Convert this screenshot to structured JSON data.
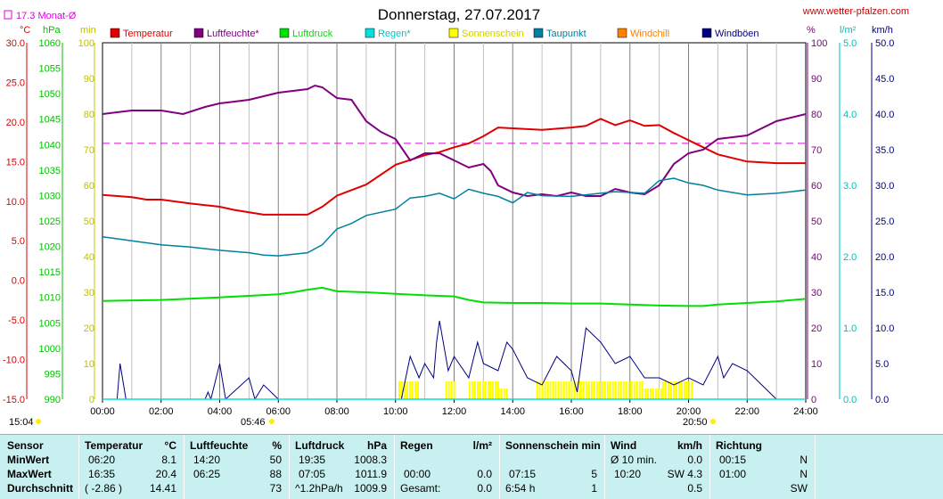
{
  "title": "Donnerstag, 27.07.2017",
  "site": "www.wetter-pfalzen.com",
  "month_avg": "17.3 Monat-Ø",
  "colors": {
    "temperature": "#e00000",
    "humidity": "#800080",
    "pressure": "#00e000",
    "rain": "#00e0e0",
    "sunshine": "#ffff00",
    "dewpoint": "#0080a0",
    "windchill": "#ff8000",
    "gusts": "#000080",
    "month_avg": "#e000e0"
  },
  "legend": [
    "Temperatur",
    "Luftfeuchte*",
    "Luftdruck",
    "Regen*",
    "Sonnenschein",
    "Taupunkt",
    "Windchill",
    "Windböen"
  ],
  "axes": {
    "temp_unit": "°C",
    "hpa_unit": "hPa",
    "min_unit": "min",
    "pct_unit": "%",
    "rain_unit": "l/m²",
    "wind_unit": "km/h",
    "temp_ticks": [
      "30.0",
      "25.0",
      "20.0",
      "15.0",
      "10.0",
      "5.0",
      "0.0",
      "-5.0",
      "-10.0",
      "-15.0"
    ],
    "hpa_ticks": [
      "1060",
      "1055",
      "1050",
      "1045",
      "1040",
      "1035",
      "1030",
      "1025",
      "1020",
      "1015",
      "1010",
      "1005",
      "1000",
      "995",
      "990"
    ],
    "min_ticks": [
      "100",
      "90",
      "80",
      "70",
      "60",
      "50",
      "40",
      "30",
      "20",
      "10",
      "0"
    ],
    "pct_ticks": [
      "100",
      "90",
      "80",
      "70",
      "60",
      "50",
      "40",
      "30",
      "20",
      "10",
      "0"
    ],
    "rain_ticks": [
      "5.0",
      "4.0",
      "3.0",
      "2.0",
      "1.0",
      "0.0"
    ],
    "wind_ticks": [
      "50.0",
      "45.0",
      "40.0",
      "35.0",
      "30.0",
      "25.0",
      "20.0",
      "15.0",
      "10.0",
      "5.0",
      "0.0"
    ],
    "x_ticks": [
      "00:00",
      "02:00",
      "04:00",
      "06:00",
      "08:00",
      "10:00",
      "12:00",
      "14:00",
      "16:00",
      "18:00",
      "20:00",
      "22:00",
      "24:00"
    ],
    "sunrise": "05:46",
    "sunset": "20:50",
    "moonrise": "15:04"
  },
  "chart_data": {
    "type": "line",
    "x_unit": "hours",
    "month_avg_temp": 17.3,
    "series": [
      {
        "name": "Temperatur",
        "axis": "°C",
        "x": [
          0,
          1,
          1.5,
          2,
          3,
          4,
          4.5,
          5,
          5.5,
          6,
          6.5,
          7,
          7.5,
          8,
          9,
          10,
          10.5,
          11,
          11.5,
          12,
          12.5,
          13,
          13.5,
          14,
          15,
          16,
          16.5,
          17,
          17.5,
          18,
          18.5,
          19,
          19.5,
          20,
          20.5,
          21,
          22,
          23,
          24
        ],
        "values": [
          10.8,
          10.5,
          10.2,
          10.2,
          9.7,
          9.3,
          8.9,
          8.6,
          8.3,
          8.3,
          8.3,
          8.3,
          9.3,
          10.7,
          12.1,
          14.6,
          15.2,
          15.8,
          16.2,
          16.8,
          17.3,
          18.2,
          19.3,
          19.2,
          19.0,
          19.3,
          19.5,
          20.4,
          19.6,
          20.2,
          19.5,
          19.6,
          18.6,
          17.7,
          16.8,
          15.9,
          15.0,
          14.8,
          14.8
        ]
      },
      {
        "name": "Luftfeuchte*",
        "axis": "%",
        "x": [
          0,
          1,
          2,
          2.75,
          3.5,
          4,
          5,
          5.5,
          6,
          6.5,
          7,
          7.25,
          7.5,
          8,
          8.5,
          9,
          9.5,
          10,
          10.25,
          10.5,
          11,
          11.5,
          12,
          12.5,
          13,
          13.25,
          13.5,
          14,
          14.5,
          15,
          15.5,
          16,
          16.5,
          17,
          17.5,
          18,
          18.5,
          19,
          19.5,
          20,
          20.5,
          21,
          22,
          23,
          24
        ],
        "values": [
          80,
          81,
          81,
          80,
          82,
          83,
          84,
          85,
          86,
          86.5,
          87,
          88,
          87.5,
          84.5,
          84,
          78,
          75,
          73,
          70,
          67,
          69,
          69,
          67,
          65,
          66,
          64,
          60,
          58,
          57,
          57.5,
          57,
          58,
          57,
          57,
          59,
          58,
          57.5,
          60,
          66,
          69,
          70,
          73,
          74,
          78,
          80
        ]
      },
      {
        "name": "Luftdruck",
        "axis": "hPa",
        "x": [
          0,
          2,
          4,
          5,
          6,
          6.5,
          7,
          7.5,
          8,
          9,
          10,
          11,
          12,
          12.5,
          13,
          14,
          15,
          16,
          17,
          18,
          19,
          20,
          20.5,
          21,
          22,
          23,
          24
        ],
        "values": [
          1009.3,
          1009.5,
          1010.0,
          1010.3,
          1010.6,
          1011.0,
          1011.5,
          1011.9,
          1011.2,
          1011.0,
          1010.7,
          1010.4,
          1010.2,
          1009.5,
          1009.0,
          1008.9,
          1008.9,
          1008.8,
          1008.8,
          1008.6,
          1008.4,
          1008.3,
          1008.3,
          1008.6,
          1008.9,
          1009.2,
          1009.7
        ]
      },
      {
        "name": "Taupunkt",
        "axis": "°C",
        "x": [
          0,
          1,
          2,
          3,
          4,
          5,
          5.5,
          6,
          7,
          7.5,
          8,
          8.5,
          9,
          10,
          10.5,
          11,
          11.5,
          12,
          12.5,
          13,
          13.5,
          14,
          14.5,
          15,
          16,
          17,
          17.5,
          18,
          18.5,
          19,
          19.5,
          20,
          20.5,
          21,
          22,
          23,
          24
        ],
        "values": [
          5.5,
          5.0,
          4.5,
          4.2,
          3.8,
          3.5,
          3.2,
          3.1,
          3.5,
          4.5,
          6.5,
          7.2,
          8.2,
          9.0,
          10.4,
          10.6,
          11.0,
          10.3,
          11.5,
          11.0,
          10.6,
          9.8,
          11.1,
          10.7,
          10.6,
          11.0,
          11.2,
          11.1,
          11.0,
          12.6,
          12.9,
          12.3,
          12.0,
          11.4,
          10.8,
          11.0,
          11.4
        ]
      },
      {
        "name": "Windböen",
        "axis": "km/h",
        "x": [
          0,
          0.5,
          0.6,
          0.8,
          3.5,
          3.6,
          3.7,
          4.0,
          4.2,
          5.0,
          5.2,
          5.5,
          6.0,
          10.2,
          10.5,
          10.8,
          11.0,
          11.3,
          11.4,
          11.5,
          11.8,
          12.0,
          12.5,
          12.8,
          13.0,
          13.5,
          13.8,
          14.0,
          14.5,
          15.0,
          15.5,
          16.0,
          16.2,
          16.5,
          17.0,
          17.5,
          18.0,
          18.5,
          19.0,
          19.5,
          20.0,
          20.5,
          21.0,
          21.2,
          21.5,
          22.0,
          22.5,
          23.0,
          24.0
        ],
        "values": [
          0,
          0,
          5,
          0,
          0,
          1,
          0,
          5,
          0,
          3,
          0,
          2,
          0,
          0,
          6,
          3,
          5,
          3,
          8,
          11,
          4,
          6,
          3,
          8,
          5,
          4,
          8,
          7,
          3,
          2,
          6,
          4,
          1,
          10,
          8,
          5,
          6,
          3,
          3,
          2,
          3,
          2,
          6,
          3,
          5,
          4,
          2,
          0,
          0
        ]
      },
      {
        "name": "Sonnenschein",
        "axis": "min",
        "x": [
          7.2,
          10.1,
          10.8,
          11.7,
          12.0,
          12.5,
          13.2,
          13.5,
          13.8,
          14.8,
          16.3,
          17.3,
          18.4,
          19.1,
          19.9,
          20.1
        ],
        "values": [
          0,
          5,
          0,
          5,
          0,
          5,
          5,
          3,
          0,
          5,
          5,
          5,
          3,
          5,
          5,
          0
        ]
      },
      {
        "name": "Regen*",
        "axis": "l/m²",
        "x": [
          0,
          24
        ],
        "values": [
          0,
          0
        ]
      }
    ]
  },
  "stats": {
    "headers": {
      "sensor": "Sensor",
      "temperature": "Temperatur",
      "temp_unit": "°C",
      "humidity": "Luftfeuchte",
      "hum_unit": "%",
      "pressure": "Luftdruck",
      "press_unit": "hPa",
      "rain": "Regen",
      "rain_unit": "l/m²",
      "sun": "Sonnenschein min",
      "wind": "Wind",
      "wind_unit": "km/h",
      "direction": "Richtung"
    },
    "rows": [
      {
        "label": "MinWert",
        "t_time": "06:20",
        "t_val": "8.1",
        "h_time": "14:20",
        "h_val": "50",
        "p_time": "19:35",
        "p_val": "1008.3",
        "r_time": "",
        "r_val": "",
        "s_time": "",
        "s_val": "",
        "w_time": "Ø 10 min.",
        "w_val": "0.0",
        "d_time": "00:15",
        "d_val": "N"
      },
      {
        "label": "MaxWert",
        "t_time": "16:35",
        "t_val": "20.4",
        "h_time": "06:25",
        "h_val": "88",
        "p_time": "07:05",
        "p_val": "1011.9",
        "r_time": "00:00",
        "r_val": "0.0",
        "s_time": "07:15",
        "s_val": "5",
        "w_time": "10:20",
        "w_val": "SW 4.3",
        "d_time": "01:00",
        "d_val": "N"
      },
      {
        "label": "Durchschnitt",
        "t_time": "( -2.86 )",
        "t_val": "14.41",
        "h_time": "",
        "h_val": "73",
        "p_time": "^1.2hPa/h",
        "p_val": "1009.9",
        "r_time": "Gesamt:",
        "r_val": "0.0",
        "s_time": "6:54 h",
        "s_val": "1",
        "w_time": "",
        "w_val": "0.5",
        "d_time": "",
        "d_val": "SW"
      }
    ]
  }
}
